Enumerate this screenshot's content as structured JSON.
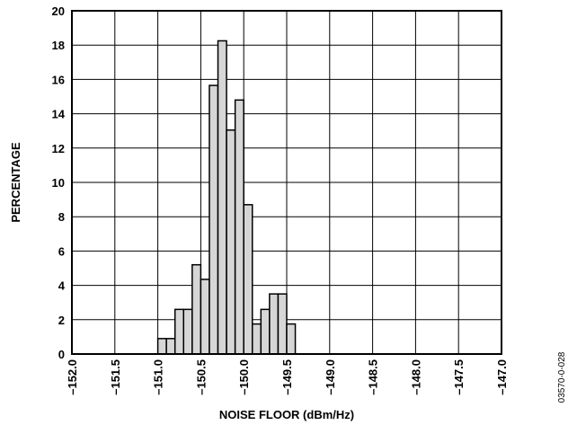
{
  "chart_data": {
    "type": "bar",
    "xlabel": "NOISE FLOOR (dBm/Hz)",
    "ylabel": "PERCENTAGE",
    "xlim": [
      -152.0,
      -147.0
    ],
    "ylim": [
      0,
      20
    ],
    "bin_width": 0.1,
    "x_tick_labels": [
      "–152.0",
      "–151.5",
      "–151.0",
      "–150.5",
      "–150.0",
      "–149.5",
      "–149.0",
      "–148.5",
      "–148.0",
      "–147.5",
      "–147.0"
    ],
    "x_ticks": [
      -152.0,
      -151.5,
      -151.0,
      -150.5,
      -150.0,
      -149.5,
      -149.0,
      -148.5,
      -148.0,
      -147.5,
      -147.0
    ],
    "y_ticks": [
      0,
      2,
      4,
      6,
      8,
      10,
      12,
      14,
      16,
      18,
      20
    ],
    "grid": true,
    "bins": [
      {
        "x": -151.0,
        "value": 0.9
      },
      {
        "x": -150.9,
        "value": 0.9
      },
      {
        "x": -150.8,
        "value": 2.6
      },
      {
        "x": -150.7,
        "value": 2.6
      },
      {
        "x": -150.6,
        "value": 5.2
      },
      {
        "x": -150.5,
        "value": 4.35
      },
      {
        "x": -150.4,
        "value": 15.65
      },
      {
        "x": -150.3,
        "value": 18.25
      },
      {
        "x": -150.2,
        "value": 13.05
      },
      {
        "x": -150.1,
        "value": 14.8
      },
      {
        "x": -150.0,
        "value": 8.7
      },
      {
        "x": -149.9,
        "value": 1.75
      },
      {
        "x": -149.8,
        "value": 2.6
      },
      {
        "x": -149.7,
        "value": 3.5
      },
      {
        "x": -149.6,
        "value": 3.5
      },
      {
        "x": -149.5,
        "value": 1.75
      }
    ]
  },
  "figure_id": "03570-0-028",
  "colors": {
    "bar_fill": "#d6d6d6",
    "bar_stroke": "#000000",
    "grid": "#000000",
    "text": "#000000"
  }
}
